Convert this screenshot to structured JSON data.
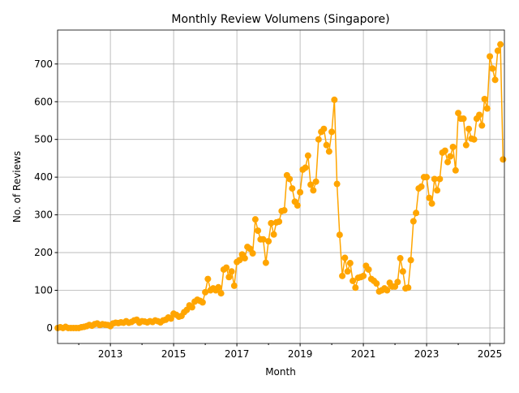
{
  "chart_data": {
    "type": "line",
    "title": "Monthly Review Volumens (Singapore)",
    "x_label": "Month",
    "y_label": "No. of Reviews",
    "x": [
      "2011-05",
      "2011-06",
      "2011-07",
      "2011-08",
      "2011-09",
      "2011-10",
      "2011-11",
      "2011-12",
      "2012-01",
      "2012-02",
      "2012-03",
      "2012-04",
      "2012-05",
      "2012-06",
      "2012-07",
      "2012-08",
      "2012-09",
      "2012-10",
      "2012-11",
      "2012-12",
      "2013-01",
      "2013-02",
      "2013-03",
      "2013-04",
      "2013-05",
      "2013-06",
      "2013-07",
      "2013-08",
      "2013-09",
      "2013-10",
      "2013-11",
      "2013-12",
      "2014-01",
      "2014-02",
      "2014-03",
      "2014-04",
      "2014-05",
      "2014-06",
      "2014-07",
      "2014-08",
      "2014-09",
      "2014-10",
      "2014-11",
      "2014-12",
      "2015-01",
      "2015-02",
      "2015-03",
      "2015-04",
      "2015-05",
      "2015-06",
      "2015-07",
      "2015-08",
      "2015-09",
      "2015-10",
      "2015-11",
      "2015-12",
      "2016-01",
      "2016-02",
      "2016-03",
      "2016-04",
      "2016-05",
      "2016-06",
      "2016-07",
      "2016-08",
      "2016-09",
      "2016-10",
      "2016-11",
      "2016-12",
      "2017-01",
      "2017-02",
      "2017-03",
      "2017-04",
      "2017-05",
      "2017-06",
      "2017-07",
      "2017-08",
      "2017-09",
      "2017-10",
      "2017-11",
      "2017-12",
      "2018-01",
      "2018-02",
      "2018-03",
      "2018-04",
      "2018-05",
      "2018-06",
      "2018-07",
      "2018-08",
      "2018-09",
      "2018-10",
      "2018-11",
      "2018-12",
      "2019-01",
      "2019-02",
      "2019-03",
      "2019-04",
      "2019-05",
      "2019-06",
      "2019-07",
      "2019-08",
      "2019-09",
      "2019-10",
      "2019-11",
      "2019-12",
      "2020-01",
      "2020-02",
      "2020-03",
      "2020-04",
      "2020-05",
      "2020-06",
      "2020-07",
      "2020-08",
      "2020-09",
      "2020-10",
      "2020-11",
      "2020-12",
      "2021-01",
      "2021-02",
      "2021-03",
      "2021-04",
      "2021-05",
      "2021-06",
      "2021-07",
      "2021-08",
      "2021-09",
      "2021-10",
      "2021-11",
      "2021-12",
      "2022-01",
      "2022-02",
      "2022-03",
      "2022-04",
      "2022-05",
      "2022-06",
      "2022-07",
      "2022-08",
      "2022-09",
      "2022-10",
      "2022-11",
      "2022-12",
      "2023-01",
      "2023-02",
      "2023-03",
      "2023-04",
      "2023-05",
      "2023-06",
      "2023-07",
      "2023-08",
      "2023-09",
      "2023-10",
      "2023-11",
      "2023-12",
      "2024-01",
      "2024-02",
      "2024-03",
      "2024-04",
      "2024-05",
      "2024-06",
      "2024-07",
      "2024-08",
      "2024-09",
      "2024-10",
      "2024-11",
      "2024-12",
      "2025-01",
      "2025-02",
      "2025-03",
      "2025-04",
      "2025-05",
      "2025-06"
    ],
    "series": [
      {
        "name": "Reviews",
        "color": "#ffa500",
        "values": [
          0,
          2,
          0,
          3,
          0,
          0,
          0,
          0,
          0,
          2,
          3,
          5,
          8,
          6,
          10,
          12,
          8,
          10,
          9,
          8,
          5,
          12,
          14,
          13,
          15,
          14,
          18,
          14,
          16,
          20,
          22,
          14,
          18,
          17,
          15,
          18,
          16,
          20,
          18,
          15,
          20,
          22,
          28,
          25,
          38,
          35,
          30,
          32,
          42,
          48,
          60,
          55,
          70,
          75,
          72,
          68,
          95,
          130,
          100,
          105,
          100,
          108,
          92,
          155,
          160,
          135,
          150,
          112,
          175,
          180,
          195,
          185,
          215,
          210,
          198,
          288,
          258,
          235,
          235,
          173,
          230,
          278,
          248,
          280,
          282,
          310,
          312,
          405,
          395,
          370,
          335,
          325,
          360,
          420,
          425,
          457,
          380,
          365,
          388,
          500,
          520,
          528,
          485,
          468,
          520,
          605,
          382,
          247,
          138,
          186,
          150,
          172,
          125,
          107,
          133,
          135,
          138,
          165,
          155,
          130,
          125,
          118,
          97,
          100,
          105,
          100,
          120,
          110,
          110,
          122,
          185,
          150,
          105,
          107,
          180,
          283,
          305,
          370,
          375,
          400,
          400,
          345,
          330,
          395,
          365,
          395,
          465,
          470,
          440,
          455,
          480,
          418,
          570,
          555,
          555,
          485,
          528,
          502,
          500,
          555,
          565,
          537,
          607,
          582,
          720,
          688,
          658,
          735,
          752,
          447
        ]
      }
    ],
    "xlim": [
      2011.33,
      2025.46
    ],
    "xticks": [
      2013,
      2015,
      2017,
      2019,
      2021,
      2023,
      2025
    ],
    "xminorticks": [
      2012,
      2014,
      2016,
      2018,
      2020,
      2022,
      2024
    ],
    "ylim": [
      -41,
      790
    ],
    "yticks": [
      0,
      100,
      200,
      300,
      400,
      500,
      600,
      700
    ],
    "grid": true
  }
}
